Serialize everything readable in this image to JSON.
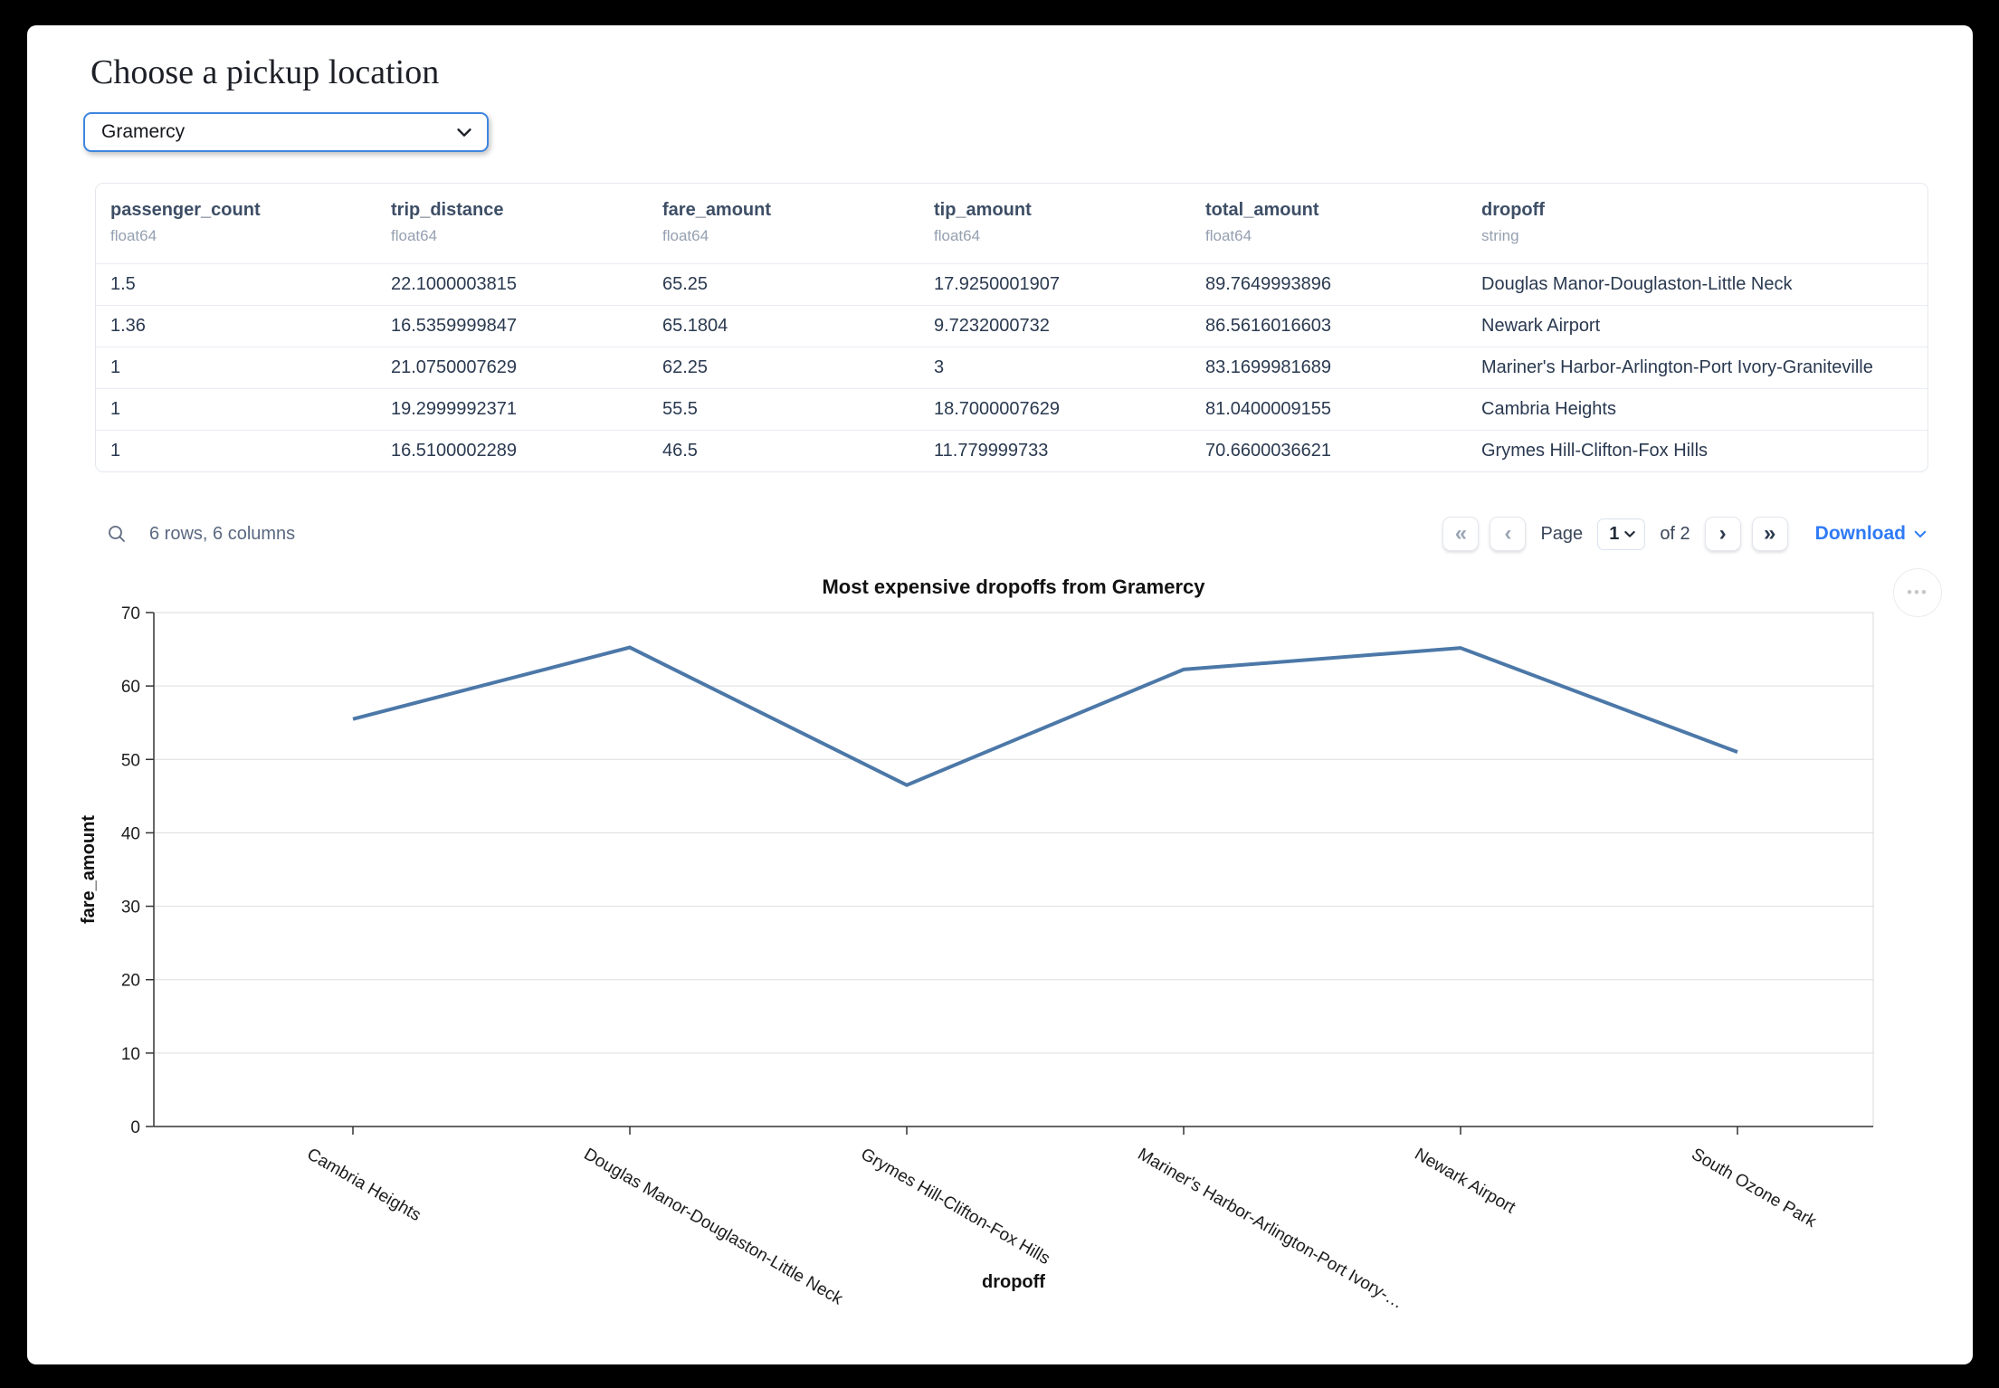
{
  "page": {
    "title": "Choose a pickup location"
  },
  "pickup": {
    "value": "Gramercy"
  },
  "table": {
    "columns": [
      {
        "name": "passenger_count",
        "dtype": "float64"
      },
      {
        "name": "trip_distance",
        "dtype": "float64"
      },
      {
        "name": "fare_amount",
        "dtype": "float64"
      },
      {
        "name": "tip_amount",
        "dtype": "float64"
      },
      {
        "name": "total_amount",
        "dtype": "float64"
      },
      {
        "name": "dropoff",
        "dtype": "string"
      }
    ],
    "rows": [
      [
        "1.5",
        "22.1000003815",
        "65.25",
        "17.9250001907",
        "89.7649993896",
        "Douglas Manor-Douglaston-Little Neck"
      ],
      [
        "1.36",
        "16.5359999847",
        "65.1804",
        "9.7232000732",
        "86.5616016603",
        "Newark Airport"
      ],
      [
        "1",
        "21.0750007629",
        "62.25",
        "3",
        "83.1699981689",
        "Mariner's Harbor-Arlington-Port Ivory-Graniteville"
      ],
      [
        "1",
        "19.2999992371",
        "55.5",
        "18.7000007629",
        "81.0400009155",
        "Cambria Heights"
      ],
      [
        "1",
        "16.5100002289",
        "46.5",
        "11.779999733",
        "70.6600036621",
        "Grymes Hill-Clifton-Fox Hills"
      ]
    ],
    "summary": "6 rows, 6 columns",
    "pagination": {
      "page_label": "Page",
      "current_page": "1",
      "of_label": "of 2",
      "first_glyph": "«",
      "prev_glyph": "‹",
      "next_glyph": "›",
      "last_glyph": "»"
    },
    "download_label": "Download"
  },
  "chart_data": {
    "type": "line",
    "title": "Most expensive dropoffs from Gramercy",
    "xlabel": "dropoff",
    "ylabel": "fare_amount",
    "categories": [
      "Cambria Heights",
      "Douglas Manor-Douglaston-Little Neck",
      "Grymes Hill-Clifton-Fox Hills",
      "Mariner's Harbor-Arlington-Port Ivory-…",
      "Newark Airport",
      "South Ozone Park"
    ],
    "values": [
      55.5,
      65.25,
      46.5,
      62.25,
      65.1804,
      51
    ],
    "ylim": [
      0,
      70
    ],
    "yticks": [
      0,
      10,
      20,
      30,
      40,
      50,
      60,
      70
    ],
    "grid": true,
    "legend": "none",
    "line_color": "#4c78a8"
  },
  "icons": {
    "more_options": "•••"
  }
}
